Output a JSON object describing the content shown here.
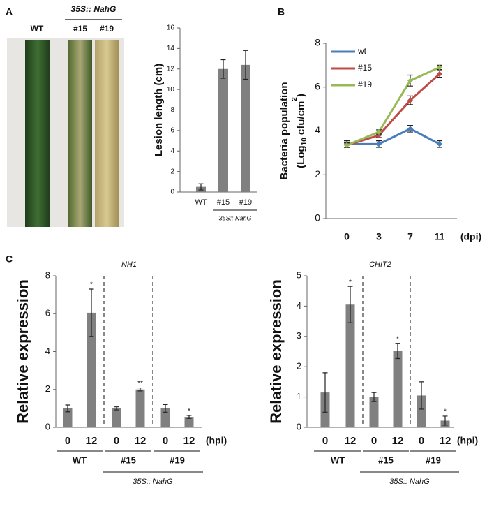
{
  "photo": {
    "panel": "A",
    "labels": [
      "WT",
      "#15",
      "#19"
    ],
    "group_note": "35S:: NahG"
  },
  "chart_data": [
    {
      "type": "bar",
      "ylabel": "Lesion length (cm)",
      "categories": [
        "WT",
        "#15",
        "#19"
      ],
      "values": [
        0.5,
        12,
        12.4
      ],
      "errors": [
        0.3,
        0.9,
        1.4
      ],
      "color": "#808080",
      "group_note": "35S:: NahG",
      "ylim": [
        0,
        16
      ],
      "yticks": [
        0,
        2,
        4,
        6,
        8,
        10,
        12,
        14,
        16
      ]
    },
    {
      "type": "line",
      "panel": "B",
      "ylabel": [
        "Bacteria population",
        [
          "(Log",
          "10",
          " cfu/cm",
          "2",
          ")"
        ]
      ],
      "categories": [
        "0",
        "3",
        "7",
        "11"
      ],
      "xunit": "(dpi)",
      "series": [
        {
          "name": "wt",
          "color": "#4a7ebb",
          "values": [
            3.4,
            3.4,
            4.1,
            3.4
          ],
          "errors": [
            0.15,
            0.15,
            0.15,
            0.15
          ]
        },
        {
          "name": "#15",
          "color": "#be4b48",
          "values": [
            3.35,
            3.8,
            5.4,
            6.6
          ],
          "errors": [
            0.1,
            0.1,
            0.2,
            0.15
          ]
        },
        {
          "name": "#19",
          "color": "#98b954",
          "values": [
            3.35,
            3.95,
            6.3,
            6.9
          ],
          "errors": [
            0.1,
            0.1,
            0.25,
            0.1
          ]
        }
      ],
      "ylim": [
        0,
        8
      ],
      "yticks": [
        0,
        2,
        4,
        6,
        8
      ],
      "legend": "upper-left"
    },
    {
      "type": "bar",
      "panel": "C",
      "title": "NH1",
      "ylabel": "Relative expression",
      "categories": [
        "0",
        "12",
        "0",
        "12",
        "0",
        "12"
      ],
      "xunit": "(hpi)",
      "values": [
        1,
        6.05,
        1,
        2,
        1,
        0.55
      ],
      "errors": [
        0.18,
        1.25,
        0.08,
        0.08,
        0.2,
        0.08
      ],
      "annotations": [
        null,
        "*",
        null,
        "**",
        null,
        "*"
      ],
      "color": "#808080",
      "groups": [
        "WT",
        "#15",
        "#19"
      ],
      "group_note": "35S:: NahG",
      "ylim": [
        0,
        8
      ],
      "yticks": [
        0,
        2,
        4,
        6,
        8
      ]
    },
    {
      "type": "bar",
      "title": "CHIT2",
      "ylabel": "Relative expression",
      "categories": [
        "0",
        "12",
        "0",
        "12",
        "0",
        "12"
      ],
      "xunit": "(hpi)",
      "values": [
        1.15,
        4.05,
        1,
        2.52,
        1.05,
        0.22
      ],
      "errors": [
        0.65,
        0.6,
        0.15,
        0.25,
        0.45,
        0.15
      ],
      "annotations": [
        null,
        "*",
        null,
        "*",
        null,
        "*"
      ],
      "color": "#808080",
      "groups": [
        "WT",
        "#15",
        "#19"
      ],
      "group_note": "35S:: NahG",
      "ylim": [
        0,
        5
      ],
      "yticks": [
        0,
        1,
        2,
        3,
        4,
        5
      ]
    }
  ]
}
